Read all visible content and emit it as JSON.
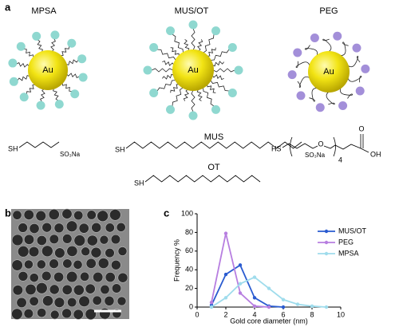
{
  "panel_a": {
    "label": "a",
    "particles": [
      {
        "name": "MPSA",
        "core": "Au"
      },
      {
        "name": "MUS/OT",
        "core": "Au"
      },
      {
        "name": "PEG",
        "core": "Au"
      }
    ],
    "mpsa_structure": {
      "thiol": "SH",
      "end": "SO₃Na"
    },
    "mus_structure": {
      "name": "MUS",
      "thiol": "SH",
      "end": "SO₃Na"
    },
    "ot_structure": {
      "name": "OT",
      "thiol": "SH"
    },
    "peg_structure": {
      "thiol": "HS",
      "ether": "O",
      "repeat": "4",
      "carbonyl": "O",
      "acid": "OH"
    }
  },
  "panel_b": {
    "label": "b"
  },
  "panel_c": {
    "label": "c"
  },
  "chart_data": {
    "type": "line",
    "xlabel": "Gold core diameter (nm)",
    "ylabel": "Frequency %",
    "x": [
      1,
      2,
      3,
      4,
      5,
      6,
      7,
      8,
      9
    ],
    "series": [
      {
        "name": "MUS/OT",
        "color": "#2a5bd0",
        "values": [
          2,
          35,
          45,
          10,
          1,
          0,
          null,
          null,
          null
        ]
      },
      {
        "name": "PEG",
        "color": "#b77ee0",
        "values": [
          5,
          79,
          15,
          1,
          0,
          null,
          null,
          null,
          null
        ]
      },
      {
        "name": "MPSA",
        "color": "#9fdcec",
        "values": [
          0,
          10,
          25,
          32,
          20,
          8,
          3,
          1,
          0
        ]
      }
    ],
    "xlim": [
      0,
      10
    ],
    "xticks": [
      0,
      2,
      4,
      6,
      8,
      10
    ],
    "ylim": [
      0,
      100
    ],
    "yticks": [
      0,
      20,
      40,
      60,
      80,
      100
    ],
    "legend": "upper-right"
  }
}
